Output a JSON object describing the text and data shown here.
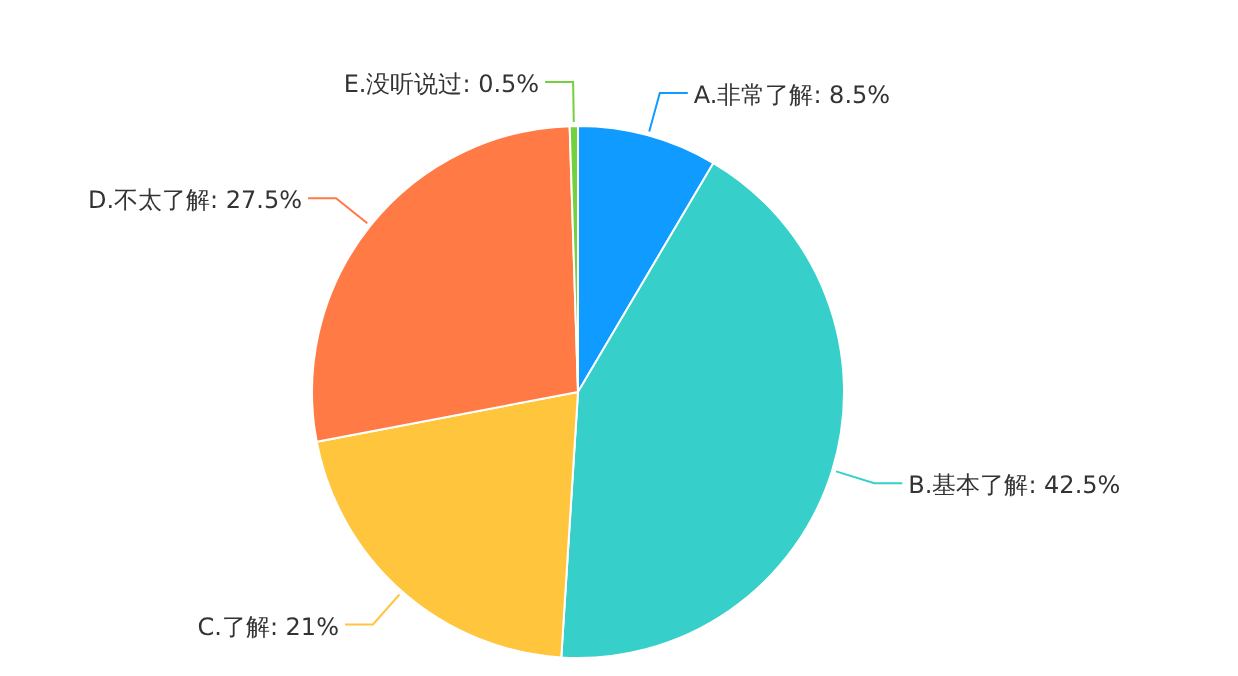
{
  "chart_data": {
    "type": "pie",
    "categories": [
      "A.非常了解",
      "B.基本了解",
      "C.了解",
      "D.不太了解",
      "E.没听说过"
    ],
    "values": [
      8.5,
      42.5,
      21,
      27.5,
      0.5
    ],
    "value_labels": [
      "8.5%",
      "42.5%",
      "21%",
      "27.5%",
      "0.5%"
    ],
    "colors": [
      "#0f9bff",
      "#36cfc9",
      "#ffc53d",
      "#ff7a45",
      "#73d13d"
    ]
  }
}
